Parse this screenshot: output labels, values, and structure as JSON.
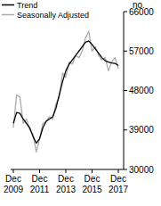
{
  "chart_data": {
    "type": "line",
    "y_label": "no.",
    "categories": [
      "Dec 2009",
      null,
      null,
      null,
      null,
      null,
      null,
      null,
      "Dec 2011",
      null,
      null,
      null,
      null,
      null,
      null,
      null,
      "Dec 2013",
      null,
      null,
      null,
      null,
      null,
      null,
      null,
      "Dec 2015",
      null,
      null,
      null,
      null,
      null,
      null,
      null,
      "Dec 2017"
    ],
    "series": [
      {
        "name": "Trend",
        "color": "#000000",
        "values": [
          40500,
          43000,
          42800,
          41500,
          40500,
          39500,
          37500,
          36000,
          37000,
          39500,
          41000,
          41500,
          42000,
          44000,
          47000,
          50000,
          52500,
          54000,
          55000,
          56000,
          57000,
          58000,
          59000,
          59300,
          58500,
          57500,
          56500,
          55500,
          54800,
          54500,
          54300,
          54200,
          53700
        ]
      },
      {
        "name": "Seasonally Adjusted",
        "color": "#aaaaaa",
        "values": [
          39500,
          47000,
          46500,
          40500,
          41500,
          39000,
          38000,
          34000,
          37000,
          40500,
          41000,
          42000,
          41500,
          45000,
          46500,
          52000,
          51000,
          54500,
          54000,
          56000,
          55500,
          57000,
          60000,
          61500,
          57000,
          58000,
          56000,
          55000,
          55500,
          52500,
          54500,
          55500,
          53000
        ]
      }
    ],
    "ylim": [
      30000,
      66000
    ],
    "yticks": [
      30000,
      39000,
      48000,
      57000,
      66000
    ],
    "grid": false,
    "legend": "top-left"
  }
}
